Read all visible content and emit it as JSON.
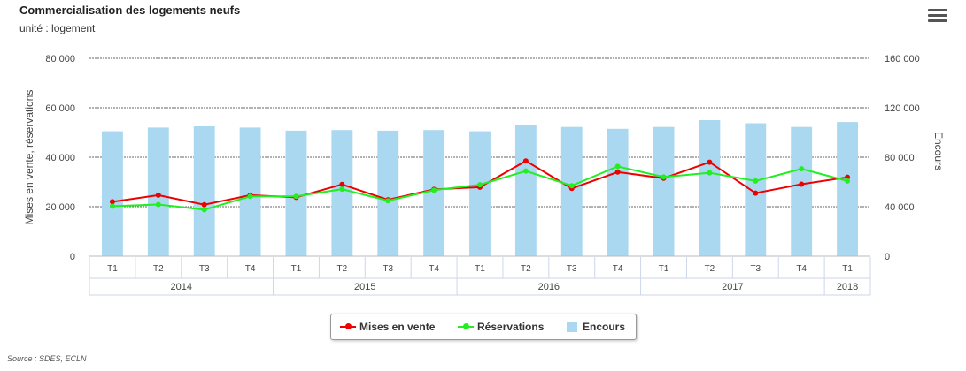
{
  "header": {
    "title": "Commercialisation des logements neufs",
    "subtitle": "unité : logement",
    "menu_icon": "hamburger-menu-icon"
  },
  "source": "Source : SDES, ECLN",
  "colors": {
    "mises": "#ee0000",
    "reservations": "#22ee22",
    "encours": "#aad8f0"
  },
  "chart_data": {
    "type": "bar+line",
    "categories": [
      "T1",
      "T2",
      "T3",
      "T4",
      "T1",
      "T2",
      "T3",
      "T4",
      "T1",
      "T2",
      "T3",
      "T4",
      "T1",
      "T2",
      "T3",
      "T4",
      "T1"
    ],
    "years": [
      {
        "label": "2014",
        "count": 4
      },
      {
        "label": "2015",
        "count": 4
      },
      {
        "label": "2016",
        "count": 4
      },
      {
        "label": "2017",
        "count": 4
      },
      {
        "label": "2018",
        "count": 1
      }
    ],
    "series": [
      {
        "name": "Mises en vente",
        "type": "line",
        "axis": "left",
        "values": [
          22000,
          24700,
          20800,
          24700,
          23800,
          29000,
          22800,
          27000,
          27900,
          38500,
          27400,
          34000,
          31500,
          38000,
          25500,
          29100,
          31900
        ]
      },
      {
        "name": "Réservations",
        "type": "line",
        "axis": "left",
        "values": [
          20200,
          20900,
          18800,
          24200,
          24200,
          27100,
          22400,
          26700,
          28900,
          34400,
          28500,
          36300,
          32000,
          33700,
          30400,
          35300,
          30400
        ]
      },
      {
        "name": "Encours",
        "type": "bar",
        "axis": "right",
        "values": [
          101000,
          104000,
          105000,
          104000,
          101500,
          102000,
          101500,
          102000,
          101000,
          106000,
          104500,
          103000,
          104500,
          110000,
          107500,
          104500,
          108500
        ]
      }
    ],
    "y_left": {
      "label": "Mises en vente, réservations",
      "min": 0,
      "max": 80000,
      "ticks": [
        "0",
        "20 000",
        "40 000",
        "60 000",
        "80 000"
      ]
    },
    "y_right": {
      "label": "Encours",
      "min": 0,
      "max": 160000,
      "ticks": [
        "0",
        "40 000",
        "80 000",
        "120 000",
        "160 000"
      ]
    },
    "grid": true,
    "legend_position": "bottom-center"
  }
}
